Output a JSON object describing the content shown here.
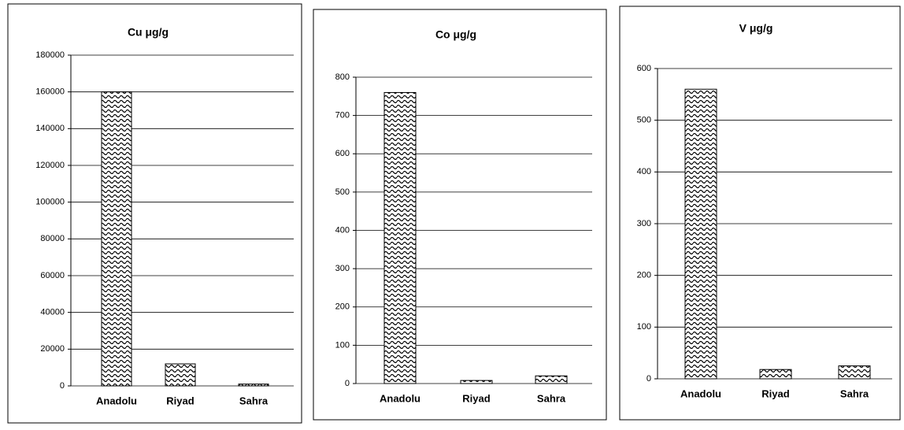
{
  "chart_data": [
    {
      "type": "bar",
      "title": "Cu μg/g",
      "categories": [
        "Anadolu",
        "Riyad",
        "Sahra"
      ],
      "values": [
        160000,
        12000,
        1000
      ],
      "color": "#000000",
      "ylim": [
        0,
        180000
      ],
      "yticks": [
        0,
        20000,
        40000,
        60000,
        80000,
        100000,
        120000,
        140000,
        160000,
        180000
      ],
      "grid": true
    },
    {
      "type": "bar",
      "title": "Co μg/g",
      "categories": [
        "Anadolu",
        "Riyad",
        "Sahra"
      ],
      "values": [
        760,
        8,
        20
      ],
      "color": "#000000",
      "ylim": [
        0,
        800
      ],
      "yticks": [
        0,
        100,
        200,
        300,
        400,
        500,
        600,
        700,
        800
      ],
      "grid": true
    },
    {
      "type": "bar",
      "title": "V μg/g",
      "categories": [
        "Anadolu",
        "Riyad",
        "Sahra"
      ],
      "values": [
        560,
        18,
        25
      ],
      "color": "#000000",
      "ylim": [
        0,
        600
      ],
      "yticks": [
        0,
        100,
        200,
        300,
        400,
        500,
        600
      ],
      "grid": true
    }
  ]
}
